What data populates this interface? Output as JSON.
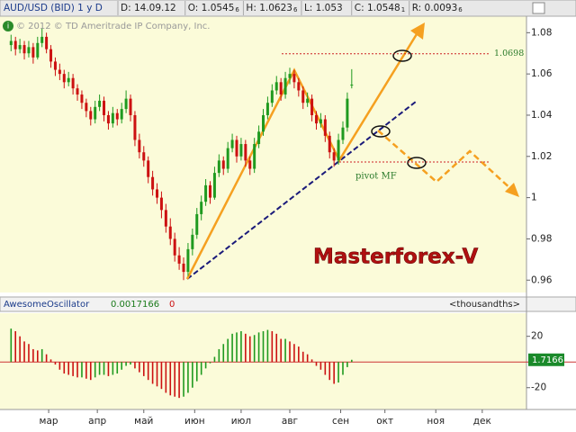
{
  "chart_data": {
    "type": "candlestick",
    "symbol": "AUD/USD (BID) 1 y D",
    "fields": [
      {
        "text": "D: 14.09.12",
        "pip": ""
      },
      {
        "text": "O: 1.0545",
        "pip": "6"
      },
      {
        "text": "H: 1.0623",
        "pip": "6"
      },
      {
        "text": "L: 1.053",
        "pip": ""
      },
      {
        "text": "C: 1.0548",
        "pip": "1"
      },
      {
        "text": "R: 0.0093",
        "pip": "6"
      }
    ],
    "copyright": "© 2012 © TD Ameritrade IP Company, Inc.",
    "watermark": "Masterforex-V",
    "target_label": "1.0698",
    "target_level": 1.0698,
    "pivot_label": "pivot MF",
    "up_color": "#1f9a1f",
    "down_color": "#cc1111",
    "xlim": [
      -1,
      237
    ],
    "xticks": [
      {
        "value": 21,
        "label": "мар"
      },
      {
        "value": 43,
        "label": "апр"
      },
      {
        "value": 64,
        "label": "май"
      },
      {
        "value": 87,
        "label": "июн"
      },
      {
        "value": 108,
        "label": "июл"
      },
      {
        "value": 130,
        "label": "авг"
      },
      {
        "value": 153,
        "label": "сен"
      },
      {
        "value": 173,
        "label": "окт"
      },
      {
        "value": 196,
        "label": "ноя"
      },
      {
        "value": 217,
        "label": "дек"
      }
    ],
    "ylim": [
      0.954,
      1.088
    ],
    "yticks": [
      1.08,
      1.06,
      1.04,
      1.02,
      1,
      0.98,
      0.96
    ],
    "x": [
      4,
      6,
      8,
      10,
      12,
      14,
      16,
      18,
      20,
      22,
      24,
      26,
      28,
      30,
      32,
      34,
      36,
      38,
      40,
      42,
      44,
      46,
      48,
      50,
      52,
      54,
      56,
      58,
      60,
      62,
      64,
      66,
      68,
      70,
      72,
      74,
      76,
      78,
      80,
      82,
      84,
      86,
      88,
      90,
      92,
      94,
      96,
      98,
      100,
      102,
      104,
      106,
      108,
      110,
      112,
      114,
      116,
      118,
      120,
      122,
      124,
      126,
      128,
      130,
      132,
      134,
      136,
      138,
      140,
      142,
      144,
      146,
      148,
      150,
      152,
      154,
      156,
      158
    ],
    "candles": [
      [
        1.074,
        1.079,
        1.071,
        1.076
      ],
      [
        1.076,
        1.078,
        1.069,
        1.072
      ],
      [
        1.072,
        1.077,
        1.07,
        1.074
      ],
      [
        1.074,
        1.076,
        1.067,
        1.07
      ],
      [
        1.07,
        1.076,
        1.068,
        1.073
      ],
      [
        1.073,
        1.075,
        1.065,
        1.068
      ],
      [
        1.068,
        1.078,
        1.067,
        1.075
      ],
      [
        1.075,
        1.082,
        1.073,
        1.078
      ],
      [
        1.078,
        1.08,
        1.07,
        1.072
      ],
      [
        1.072,
        1.074,
        1.063,
        1.066
      ],
      [
        1.066,
        1.068,
        1.059,
        1.062
      ],
      [
        1.062,
        1.065,
        1.057,
        1.06
      ],
      [
        1.06,
        1.062,
        1.053,
        1.056
      ],
      [
        1.056,
        1.061,
        1.054,
        1.058
      ],
      [
        1.058,
        1.06,
        1.05,
        1.053
      ],
      [
        1.053,
        1.055,
        1.047,
        1.05
      ],
      [
        1.05,
        1.052,
        1.043,
        1.046
      ],
      [
        1.046,
        1.048,
        1.039,
        1.042
      ],
      [
        1.042,
        1.044,
        1.035,
        1.038
      ],
      [
        1.038,
        1.047,
        1.036,
        1.044
      ],
      [
        1.044,
        1.05,
        1.042,
        1.047
      ],
      [
        1.047,
        1.049,
        1.037,
        1.04
      ],
      [
        1.04,
        1.042,
        1.033,
        1.036
      ],
      [
        1.036,
        1.044,
        1.034,
        1.041
      ],
      [
        1.041,
        1.043,
        1.035,
        1.038
      ],
      [
        1.038,
        1.046,
        1.036,
        1.043
      ],
      [
        1.043,
        1.052,
        1.041,
        1.048
      ],
      [
        1.048,
        1.05,
        1.037,
        1.04
      ],
      [
        1.04,
        1.042,
        1.025,
        1.028
      ],
      [
        1.028,
        1.031,
        1.019,
        1.022
      ],
      [
        1.022,
        1.025,
        1.015,
        1.018
      ],
      [
        1.018,
        1.02,
        1.007,
        1.01
      ],
      [
        1.01,
        1.013,
        1.001,
        1.004
      ],
      [
        1.004,
        1.007,
        0.997,
        1
      ],
      [
        1,
        1.003,
        0.99,
        0.994
      ],
      [
        0.994,
        0.997,
        0.983,
        0.986
      ],
      [
        0.986,
        0.99,
        0.977,
        0.98
      ],
      [
        0.98,
        0.983,
        0.969,
        0.972
      ],
      [
        0.972,
        0.976,
        0.965,
        0.968
      ],
      [
        0.968,
        0.971,
        0.96,
        0.964
      ],
      [
        0.964,
        0.978,
        0.962,
        0.975
      ],
      [
        0.975,
        0.985,
        0.972,
        0.982
      ],
      [
        0.982,
        0.995,
        0.98,
        0.992
      ],
      [
        0.992,
        1.001,
        0.989,
        0.998
      ],
      [
        0.998,
        1.009,
        0.996,
        1.006
      ],
      [
        1.006,
        1.008,
        0.997,
        1
      ],
      [
        1,
        1.015,
        0.999,
        1.012
      ],
      [
        1.012,
        1.021,
        1.01,
        1.018
      ],
      [
        1.018,
        1.02,
        1.011,
        1.014
      ],
      [
        1.014,
        1.027,
        1.012,
        1.024
      ],
      [
        1.024,
        1.031,
        1.022,
        1.028
      ],
      [
        1.028,
        1.03,
        1.017,
        1.02
      ],
      [
        1.02,
        1.029,
        1.018,
        1.026
      ],
      [
        1.026,
        1.028,
        1.015,
        1.018
      ],
      [
        1.018,
        1.02,
        1.011,
        1.014
      ],
      [
        1.014,
        1.029,
        1.012,
        1.026
      ],
      [
        1.026,
        1.035,
        1.024,
        1.032
      ],
      [
        1.032,
        1.043,
        1.03,
        1.04
      ],
      [
        1.04,
        1.049,
        1.038,
        1.046
      ],
      [
        1.046,
        1.055,
        1.044,
        1.052
      ],
      [
        1.052,
        1.059,
        1.05,
        1.056
      ],
      [
        1.056,
        1.058,
        1.047,
        1.05
      ],
      [
        1.05,
        1.061,
        1.048,
        1.058
      ],
      [
        1.058,
        1.063,
        1.055,
        1.06
      ],
      [
        1.06,
        1.062,
        1.053,
        1.056
      ],
      [
        1.056,
        1.058,
        1.049,
        1.052
      ],
      [
        1.052,
        1.054,
        1.043,
        1.046
      ],
      [
        1.046,
        1.051,
        1.044,
        1.048
      ],
      [
        1.048,
        1.05,
        1.037,
        1.04
      ],
      [
        1.04,
        1.042,
        1.033,
        1.036
      ],
      [
        1.036,
        1.041,
        1.034,
        1.038
      ],
      [
        1.038,
        1.04,
        1.027,
        1.03
      ],
      [
        1.03,
        1.032,
        1.019,
        1.022
      ],
      [
        1.022,
        1.024,
        1.015,
        1.018
      ],
      [
        1.018,
        1.031,
        1.016,
        1.028
      ],
      [
        1.028,
        1.037,
        1.026,
        1.034
      ],
      [
        1.034,
        1.051,
        1.032,
        1.048
      ],
      [
        1.0545,
        1.0623,
        1.053,
        1.0548
      ]
    ],
    "oscillator": {
      "name": "AwesomeOscillator",
      "reading": "0.0017166",
      "flag": "0",
      "units": "<thousandths>",
      "last_label": "1.7166",
      "ylim": [
        -37,
        38
      ],
      "yticks": [
        20,
        -20
      ],
      "values": [
        26,
        24,
        20,
        16,
        14,
        10,
        9,
        10,
        6,
        2,
        -2,
        -6,
        -9,
        -10,
        -11,
        -12,
        -12,
        -13,
        -14,
        -12,
        -10,
        -10,
        -11,
        -10,
        -9,
        -6,
        -3,
        -2,
        -5,
        -8,
        -11,
        -14,
        -17,
        -19,
        -21,
        -24,
        -26,
        -27,
        -28,
        -27,
        -24,
        -20,
        -15,
        -10,
        -5,
        -1,
        4,
        10,
        14,
        18,
        22,
        23,
        24,
        22,
        20,
        21,
        23,
        24,
        25,
        24,
        22,
        18,
        18,
        16,
        14,
        12,
        8,
        6,
        2,
        -3,
        -6,
        -10,
        -14,
        -17,
        -16,
        -10,
        -4,
        1.7166
      ]
    }
  }
}
